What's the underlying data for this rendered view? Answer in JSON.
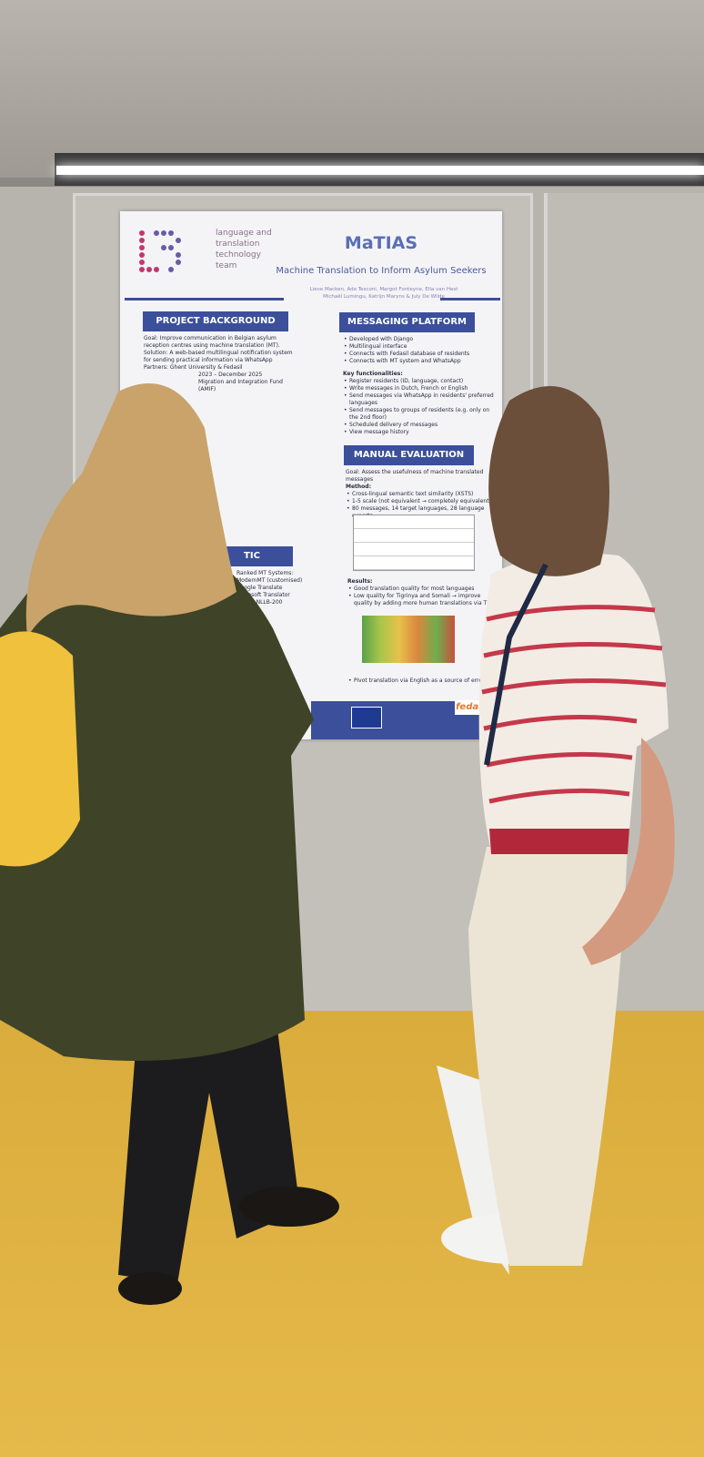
{
  "poster": {
    "logo": [
      "language and",
      "translation",
      "technology",
      "team"
    ],
    "title": "MaTIAS",
    "subtitle": "Machine Translation to Inform Asylum Seekers",
    "authors": [
      "Lieve Macken, Ada Tesconi, Margot Fonteyne, Ella van Hest",
      "Michaël Lumingu, Katrijn Maryns & July De Wilde"
    ],
    "background": {
      "heading": "PROJECT BACKGROUND",
      "lines": [
        "Goal: Improve communication in Belgian asylum reception centres using machine translation (MT).",
        "Solution: A web-based multilingual notification system for sending practical information via WhatsApp",
        "Partners: Ghent University & Fedasil",
        "2023 – December 2025",
        "Migration and Integration Fund (AMIF)"
      ]
    },
    "automatic": {
      "heading": "TIC EVALUATION",
      "lines": [
        "Ranked MT Systems:",
        "ModernMT (customised)",
        "Google Translate",
        "Microsoft Translator",
        "Meta's NLLB-200"
      ]
    },
    "platform": {
      "heading": "MESSAGING PLATFORM",
      "bullets": [
        "Developed with Django",
        "Multilingual interface",
        "Connects with Fedasil database of residents",
        "Connects with MT system and WhatsApp"
      ],
      "key_heading": "Key functionalities:",
      "key": [
        "Register residents (ID, language, contact)",
        "Write messages in Dutch, French or English",
        "Send messages via WhatsApp in residents' preferred languages",
        "Send messages to groups of residents (e.g. only on the 2nd floor)",
        "Scheduled delivery of messages",
        "View message history"
      ]
    },
    "manual": {
      "heading": "MANUAL EVALUATION",
      "goal": "Goal: Assess the usefulness of machine translated messages",
      "method_heading": "Method:",
      "method": [
        "Cross-lingual semantic text similarity (XSTS)",
        "1-5 scale (not equivalent → completely equivalent)",
        "80 messages, 14 target languages, 28 language experts"
      ],
      "results_heading": "Results:",
      "results": [
        "Good translation quality for most languages",
        "Low quality for Tigrinya and Somali → improve quality by adding more human translations via TM",
        "Pivot translation via English as a source of errors"
      ]
    },
    "footer": "fedasil"
  }
}
